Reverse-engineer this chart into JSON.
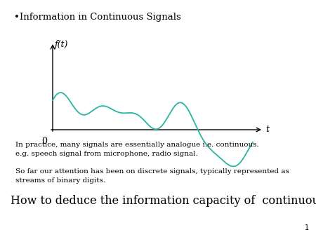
{
  "title": "•Information in Continuous Signals",
  "ylabel": "f(t)",
  "xlabel": "t",
  "origin_label": "0",
  "curve_color": "#2ab5a0",
  "axis_color": "#000000",
  "text1": "In practice, many signals are essentially analogue i.e. continuous.\ne.g. speech signal from microphone, radio signal.",
  "text2": "So far our attention has been on discrete signals, typically represented as\nstreams of binary digits.",
  "text3": "How to deduce the information capacity of  continuous signals?",
  "page_number": "1",
  "bg_color": "#ffffff",
  "title_fontsize": 9.5,
  "body_fontsize": 7.5,
  "big_fontsize": 11.5
}
